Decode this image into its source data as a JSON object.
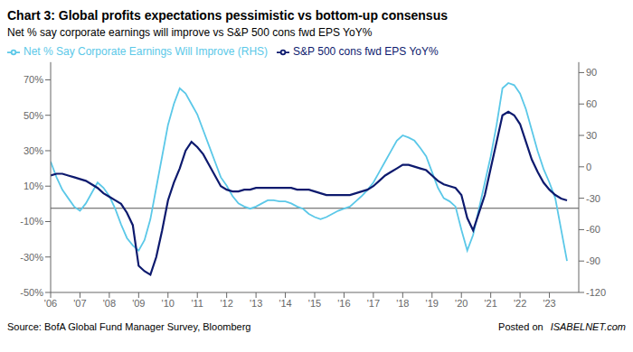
{
  "chart_data": {
    "type": "line",
    "title": "Chart 3: Global profits expectations pessimistic vs bottom-up consensus",
    "subtitle": "Net % say corporate earnings will improve vs S&P 500 cons fwd EPS YoY%",
    "source": "Source: BofA Global Fund Manager Survey, Bloomberg",
    "annotations": [
      "Posted on",
      "ISABELNET.com"
    ],
    "x": [
      2006.0,
      2006.2,
      2006.4,
      2006.6,
      2006.8,
      2007.0,
      2007.2,
      2007.4,
      2007.6,
      2007.8,
      2008.0,
      2008.2,
      2008.4,
      2008.6,
      2008.8,
      2009.0,
      2009.2,
      2009.4,
      2009.6,
      2009.8,
      2010.0,
      2010.2,
      2010.4,
      2010.6,
      2010.8,
      2011.0,
      2011.2,
      2011.4,
      2011.6,
      2011.8,
      2012.0,
      2012.2,
      2012.4,
      2012.6,
      2012.8,
      2013.0,
      2013.2,
      2013.4,
      2013.6,
      2013.8,
      2014.0,
      2014.2,
      2014.4,
      2014.6,
      2014.8,
      2015.0,
      2015.2,
      2015.4,
      2015.6,
      2015.8,
      2016.0,
      2016.2,
      2016.4,
      2016.6,
      2016.8,
      2017.0,
      2017.2,
      2017.4,
      2017.6,
      2017.8,
      2018.0,
      2018.2,
      2018.4,
      2018.6,
      2018.8,
      2019.0,
      2019.2,
      2019.4,
      2019.6,
      2019.8,
      2020.0,
      2020.2,
      2020.4,
      2020.6,
      2020.8,
      2021.0,
      2021.2,
      2021.4,
      2021.6,
      2021.8,
      2022.0,
      2022.2,
      2022.4,
      2022.6,
      2022.8,
      2023.0,
      2023.2,
      2023.4,
      2023.6
    ],
    "xlim": [
      2006.0,
      2024.0
    ],
    "xticks": [
      {
        "value": 2006,
        "label": "'06"
      },
      {
        "value": 2007,
        "label": "'07"
      },
      {
        "value": 2008,
        "label": "'08"
      },
      {
        "value": 2009,
        "label": "'09"
      },
      {
        "value": 2010,
        "label": "'10"
      },
      {
        "value": 2011,
        "label": "'11"
      },
      {
        "value": 2012,
        "label": "'12"
      },
      {
        "value": 2013,
        "label": "'13"
      },
      {
        "value": 2014,
        "label": "'14"
      },
      {
        "value": 2015,
        "label": "'15"
      },
      {
        "value": 2016,
        "label": "'16"
      },
      {
        "value": 2017,
        "label": "'17"
      },
      {
        "value": 2018,
        "label": "'18"
      },
      {
        "value": 2019,
        "label": "'19"
      },
      {
        "value": 2020,
        "label": "'20"
      },
      {
        "value": 2021,
        "label": "'21"
      },
      {
        "value": 2022,
        "label": "'22"
      },
      {
        "value": 2023,
        "label": "'23"
      }
    ],
    "ylim": [
      -50,
      80
    ],
    "yticks": [
      {
        "value": -50,
        "label": "-50%"
      },
      {
        "value": -30,
        "label": "-30%"
      },
      {
        "value": -10,
        "label": "-10%"
      },
      {
        "value": 10,
        "label": "10%"
      },
      {
        "value": 30,
        "label": "30%"
      },
      {
        "value": 50,
        "label": "50%"
      },
      {
        "value": 70,
        "label": "70%"
      }
    ],
    "y2lim": [
      -120,
      100
    ],
    "y2ticks": [
      -120,
      -90,
      -60,
      -30,
      0,
      30,
      60,
      90
    ],
    "series": [
      {
        "name": "S&P 500 cons fwd EPS YoY%",
        "color": "#0d1a6e",
        "values": [
          16,
          17,
          17,
          16,
          15,
          14,
          13,
          11,
          9,
          6,
          4,
          2,
          0,
          -5,
          -12,
          -35,
          -38,
          -40,
          -30,
          -15,
          2,
          12,
          20,
          30,
          35,
          32,
          28,
          22,
          16,
          10,
          8,
          7,
          7,
          8,
          8,
          9,
          9,
          9,
          9,
          9,
          9,
          9,
          8,
          8,
          8,
          7,
          6,
          5,
          5,
          5,
          5,
          5,
          6,
          7,
          8,
          10,
          13,
          16,
          18,
          20,
          22,
          22,
          21,
          20,
          19,
          16,
          13,
          11,
          10,
          9,
          5,
          -8,
          -15,
          -5,
          5,
          20,
          35,
          50,
          52,
          50,
          45,
          35,
          25,
          18,
          12,
          8,
          5,
          3,
          2
        ]
      },
      {
        "name": "Net % Say Corporate Earnings Will Improve (RHS)",
        "color": "#5bc8e8",
        "axis": "y2",
        "values": [
          5,
          -10,
          -22,
          -30,
          -38,
          -42,
          -35,
          -25,
          -15,
          -20,
          -28,
          -40,
          -55,
          -68,
          -75,
          -80,
          -70,
          -50,
          -20,
          10,
          40,
          60,
          75,
          70,
          60,
          50,
          35,
          20,
          5,
          -10,
          -18,
          -28,
          -35,
          -38,
          -40,
          -38,
          -35,
          -32,
          -32,
          -33,
          -33,
          -35,
          -38,
          -40,
          -45,
          -48,
          -50,
          -48,
          -45,
          -42,
          -40,
          -38,
          -33,
          -28,
          -22,
          -15,
          -5,
          5,
          15,
          25,
          30,
          28,
          25,
          18,
          10,
          -5,
          -20,
          -30,
          -33,
          -38,
          -60,
          -80,
          -65,
          -40,
          -15,
          10,
          40,
          75,
          80,
          78,
          70,
          55,
          35,
          15,
          -2,
          -15,
          -30,
          -60,
          -90
        ]
      }
    ],
    "hlines": [
      {
        "y": -2.5,
        "color": "#555555"
      }
    ],
    "legend": "upper left",
    "grid": false
  }
}
